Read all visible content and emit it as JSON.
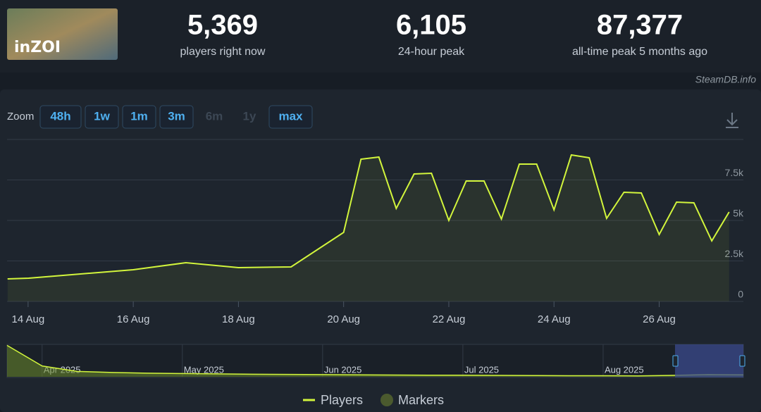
{
  "header": {
    "logo_text": "inZOI",
    "stats": [
      {
        "value": "5,369",
        "label": "players right now"
      },
      {
        "value": "6,105",
        "label": "24-hour peak"
      },
      {
        "value": "87,377",
        "label": "all-time peak 5 months ago"
      }
    ]
  },
  "source": "SteamDB.info",
  "zoom": {
    "label": "Zoom",
    "buttons": [
      "48h",
      "1w",
      "1m",
      "3m",
      "6m",
      "1y",
      "max"
    ],
    "disabled": [
      "6m",
      "1y"
    ]
  },
  "chart_data": [
    {
      "type": "line",
      "x": [
        13.61,
        14.01,
        16.0,
        17.0,
        18.0,
        19.0,
        20.0,
        20.33,
        20.67,
        21.0,
        21.34,
        21.67,
        22.0,
        22.33,
        22.67,
        23.0,
        23.34,
        23.67,
        24.0,
        24.33,
        24.67,
        25.0,
        25.33,
        25.66,
        26.0,
        26.33,
        26.66,
        27.0,
        27.33
      ],
      "series": [
        {
          "name": "Players",
          "color": "#d2f53c",
          "values": [
            1391,
            1435,
            1957,
            2391,
            2087,
            2130,
            4261,
            8783,
            8913,
            5739,
            7870,
            7913,
            5000,
            7435,
            7435,
            5087,
            8478,
            8478,
            5652,
            9043,
            8870,
            5130,
            6739,
            6696,
            4130,
            6130,
            6087,
            3739,
            5522
          ]
        }
      ],
      "markers_legend": {
        "name": "Markers",
        "color": "#4b5a2e"
      },
      "xlim": [
        13.6,
        27.4
      ],
      "xticks": [
        {
          "value": 14,
          "label": "14 Aug"
        },
        {
          "value": 16,
          "label": "16 Aug"
        },
        {
          "value": 18,
          "label": "18 Aug"
        },
        {
          "value": 20,
          "label": "20 Aug"
        },
        {
          "value": 22,
          "label": "22 Aug"
        },
        {
          "value": 24,
          "label": "24 Aug"
        },
        {
          "value": 26,
          "label": "26 Aug"
        }
      ],
      "ylim": [
        0,
        10000
      ],
      "yticks": [
        0,
        {
          "value": 2500,
          "label": "2.5k"
        },
        {
          "value": 5000,
          "label": "5k"
        },
        {
          "value": 7500,
          "label": "7.5k"
        }
      ],
      "grid": true
    },
    {
      "type": "area",
      "categories": [
        null,
        "Apr 2025",
        null,
        null,
        null,
        "May 2025",
        null,
        null,
        null,
        "Jun 2025",
        null,
        null,
        null,
        "Jul 2025",
        null,
        null,
        null,
        "Aug 2025",
        null,
        null,
        null,
        null
      ],
      "values": [
        87377,
        30000,
        15000,
        12000,
        10000,
        9000,
        8000,
        7000,
        6500,
        6000,
        5500,
        5000,
        4500,
        4500,
        4000,
        3500,
        3000,
        3000,
        2500,
        4000,
        6000,
        5500
      ],
      "color": "#d2f53c",
      "ylim": [
        0,
        90000
      ]
    }
  ]
}
